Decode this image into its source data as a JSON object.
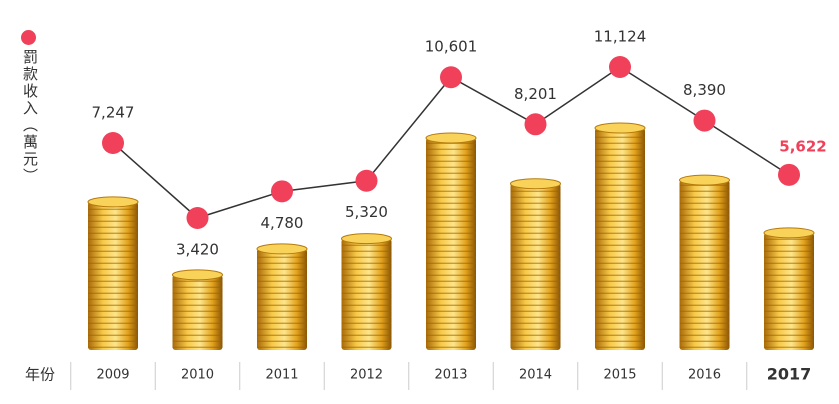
{
  "chart_data": {
    "type": "coin-line",
    "x_label": "年份",
    "categories": [
      "2009",
      "2010",
      "2011",
      "2012",
      "2013",
      "2014",
      "2015",
      "2016",
      "2017"
    ],
    "series": [
      {
        "name": "罰款收入（萬元）",
        "color": "#f0405a",
        "values": [
          7247,
          3420,
          4780,
          5320,
          10601,
          8201,
          11124,
          8390,
          5622
        ],
        "value_labels": [
          "7,247",
          "3,420",
          "4,780",
          "5,320",
          "10,601",
          "8,201",
          "11,124",
          "8,390",
          "5,622"
        ]
      }
    ]
  }
}
